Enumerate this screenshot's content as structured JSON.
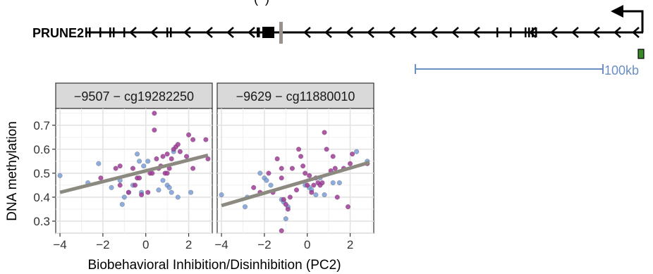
{
  "gene_track": {
    "gene_label": "PRUNE2",
    "top_text_partial": "(–)",
    "scale_bar_label": "100kb",
    "colors": {
      "gene": "#000000",
      "cpg_marker": "#9a918a",
      "scale_bar": "#6a8fc0",
      "feature_box": "#3a8a2a"
    }
  },
  "chart_data": [
    {
      "type": "scatter",
      "facet_label": "−9507 − cg19282250",
      "xlabel": "Biobehavioral Inhibition/Disinhibition (PC2)",
      "ylabel": "DNA methylation",
      "xlim": [
        -4.2,
        3.1
      ],
      "ylim": [
        0.25,
        0.77
      ],
      "xticks": [
        -4,
        -2,
        0,
        2
      ],
      "xtick_labels": [
        "−4",
        "−2",
        "0",
        "2"
      ],
      "yticks": [
        0.3,
        0.4,
        0.5,
        0.6,
        0.7
      ],
      "ytick_labels": [
        "0.3",
        "0.4",
        "0.5",
        "0.6",
        "0.7"
      ],
      "grid": true,
      "fit_line": {
        "x": [
          -4,
          2.9
        ],
        "y": [
          0.42,
          0.575
        ],
        "color": "#8c8a80"
      },
      "series": [
        {
          "color": "#7a9fd6",
          "points": [
            [
              -4.0,
              0.49
            ],
            [
              -2.2,
              0.54
            ],
            [
              -2.7,
              0.46
            ],
            [
              -1.6,
              0.44
            ],
            [
              -1.2,
              0.47
            ],
            [
              -1.0,
              0.4
            ],
            [
              -1.1,
              0.37
            ],
            [
              -0.8,
              0.42
            ],
            [
              -0.6,
              0.45
            ],
            [
              -0.4,
              0.58
            ],
            [
              -0.3,
              0.55
            ],
            [
              -0.2,
              0.42
            ],
            [
              0.1,
              0.55
            ],
            [
              -0.1,
              0.53
            ],
            [
              0.6,
              0.43
            ],
            [
              0.8,
              0.47
            ],
            [
              1.0,
              0.45
            ],
            [
              1.1,
              0.44
            ],
            [
              1.2,
              0.42
            ],
            [
              1.3,
              0.59
            ],
            [
              1.5,
              0.4
            ],
            [
              2.1,
              0.42
            ]
          ]
        },
        {
          "color": "#a03c98",
          "points": [
            [
              -2.1,
              0.48
            ],
            [
              -1.4,
              0.52
            ],
            [
              -1.2,
              0.53
            ],
            [
              -1.2,
              0.45
            ],
            [
              -0.8,
              0.42
            ],
            [
              -0.6,
              0.52
            ],
            [
              -0.5,
              0.45
            ],
            [
              -0.4,
              0.48
            ],
            [
              -0.3,
              0.48
            ],
            [
              -0.2,
              0.41
            ],
            [
              0.1,
              0.42
            ],
            [
              0.2,
              0.5
            ],
            [
              0.3,
              0.5
            ],
            [
              0.4,
              0.68
            ],
            [
              0.4,
              0.75
            ],
            [
              0.5,
              0.56
            ],
            [
              0.6,
              0.52
            ],
            [
              0.7,
              0.53
            ],
            [
              0.8,
              0.57
            ],
            [
              0.9,
              0.5
            ],
            [
              1.0,
              0.58
            ],
            [
              1.0,
              0.5
            ],
            [
              1.1,
              0.52
            ],
            [
              1.2,
              0.56
            ],
            [
              1.3,
              0.6
            ],
            [
              1.4,
              0.61
            ],
            [
              1.5,
              0.62
            ],
            [
              1.6,
              0.59
            ],
            [
              1.9,
              0.57
            ],
            [
              2.0,
              0.66
            ],
            [
              2.2,
              0.64
            ],
            [
              2.2,
              0.52
            ],
            [
              2.8,
              0.64
            ],
            [
              2.9,
              0.56
            ]
          ]
        }
      ]
    },
    {
      "type": "scatter",
      "facet_label": "−9629 − cg11880010",
      "xlim": [
        -4.2,
        3.1
      ],
      "ylim": [
        0.25,
        0.77
      ],
      "xticks": [
        -4,
        -2,
        0,
        2
      ],
      "xtick_labels": [
        "−4",
        "−2",
        "0",
        "2"
      ],
      "grid": true,
      "fit_line": {
        "x": [
          -4,
          2.9
        ],
        "y": [
          0.365,
          0.545
        ],
        "color": "#8c8a80"
      },
      "series": [
        {
          "color": "#7a9fd6",
          "points": [
            [
              -4.0,
              0.41
            ],
            [
              -2.9,
              0.36
            ],
            [
              -2.8,
              0.4
            ],
            [
              -2.2,
              0.5
            ],
            [
              -2.0,
              0.48
            ],
            [
              -1.9,
              0.47
            ],
            [
              -1.7,
              0.45
            ],
            [
              -1.2,
              0.39
            ],
            [
              -1.1,
              0.38
            ],
            [
              -1.0,
              0.31
            ],
            [
              -0.9,
              0.36
            ],
            [
              -0.1,
              0.45
            ],
            [
              0.1,
              0.44
            ],
            [
              0.2,
              0.43
            ],
            [
              0.4,
              0.41
            ],
            [
              0.6,
              0.48
            ],
            [
              0.8,
              0.41
            ],
            [
              1.2,
              0.46
            ],
            [
              1.5,
              0.46
            ],
            [
              2.3,
              0.59
            ],
            [
              2.8,
              0.55
            ]
          ]
        },
        {
          "color": "#a03c98",
          "points": [
            [
              -2.5,
              0.44
            ],
            [
              -2.2,
              0.42
            ],
            [
              -1.8,
              0.5
            ],
            [
              -1.6,
              0.42
            ],
            [
              -1.4,
              0.56
            ],
            [
              -1.2,
              0.48
            ],
            [
              -1.2,
              0.52
            ],
            [
              -1.1,
              0.39
            ],
            [
              -1.0,
              0.37
            ],
            [
              -0.9,
              0.35
            ],
            [
              -0.8,
              0.4
            ],
            [
              -0.7,
              0.52
            ],
            [
              -0.5,
              0.43
            ],
            [
              -0.4,
              0.6
            ],
            [
              -0.3,
              0.57
            ],
            [
              -0.2,
              0.53
            ],
            [
              -0.1,
              0.5
            ],
            [
              0.0,
              0.45
            ],
            [
              0.1,
              0.49
            ],
            [
              0.2,
              0.42
            ],
            [
              0.3,
              0.45
            ],
            [
              0.4,
              0.48
            ],
            [
              0.5,
              0.46
            ],
            [
              0.6,
              0.45
            ],
            [
              0.7,
              0.46
            ],
            [
              0.8,
              0.67
            ],
            [
              0.9,
              0.6
            ],
            [
              1.1,
              0.51
            ],
            [
              1.2,
              0.57
            ],
            [
              1.3,
              0.52
            ],
            [
              1.4,
              0.4
            ],
            [
              1.7,
              0.52
            ],
            [
              2.0,
              0.54
            ],
            [
              2.1,
              0.58
            ],
            [
              1.9,
              0.36
            ],
            [
              2.8,
              0.54
            ],
            [
              -1.2,
              0.26
            ]
          ]
        }
      ]
    }
  ]
}
